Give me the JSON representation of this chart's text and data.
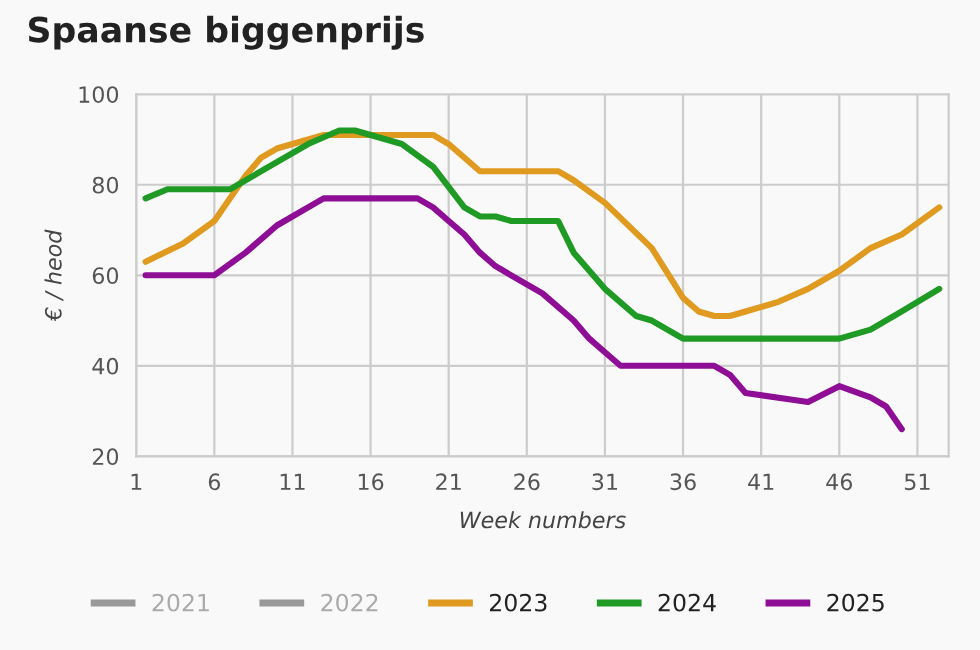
{
  "chart_data": {
    "type": "line",
    "title": "Spaanse biggenprijs",
    "xlabel": "Week numbers",
    "ylabel": "€ / heod",
    "xlim": [
      1,
      53
    ],
    "xticks": [
      1,
      6,
      11,
      16,
      21,
      26,
      31,
      36,
      41,
      46,
      51
    ],
    "ylim": [
      20,
      100
    ],
    "yticks": [
      20,
      40,
      60,
      80,
      100
    ],
    "grid": true,
    "legend": "bottom",
    "line_style": "solid",
    "series": [
      {
        "name": "2021",
        "color": "#999999"
      },
      {
        "name": "2022",
        "color": "#999999"
      },
      {
        "name": "2023",
        "color": "#e09a1f",
        "x": [
          1.6,
          4,
          6,
          8,
          9,
          10,
          11,
          13,
          15,
          20,
          21,
          23,
          28,
          29,
          31,
          34,
          36,
          37,
          38,
          39,
          40,
          42,
          44,
          46,
          48,
          50,
          52.4
        ],
        "values": [
          63,
          67,
          72,
          82,
          86,
          88,
          89,
          91,
          91,
          91,
          89,
          83,
          83,
          81,
          76,
          66,
          55,
          52,
          51,
          51,
          52,
          54,
          57,
          61,
          66,
          69,
          75
        ]
      },
      {
        "name": "2024",
        "color": "#1f9a24",
        "x": [
          1.6,
          3,
          7,
          9,
          11,
          12,
          14,
          15,
          16,
          18,
          20,
          22,
          23,
          24,
          25,
          28,
          29,
          31,
          33,
          34,
          36,
          46,
          48,
          50,
          52.4
        ],
        "values": [
          77,
          79,
          79,
          83,
          87,
          89,
          92,
          92,
          91,
          89,
          84,
          75,
          73,
          73,
          72,
          72,
          65,
          57,
          51,
          50,
          46,
          46,
          48,
          52,
          57
        ]
      },
      {
        "name": "2025",
        "color": "#8e0f96",
        "x": [
          1.6,
          6,
          8,
          10,
          12,
          13,
          19,
          20,
          21,
          22,
          23,
          24,
          25,
          27,
          29,
          30,
          31,
          32,
          38,
          39,
          40,
          43,
          44,
          46,
          48,
          49,
          50
        ],
        "values": [
          60,
          60,
          65,
          71,
          75,
          77,
          77,
          75,
          72,
          69,
          65,
          62,
          60,
          56,
          50,
          46,
          43,
          40,
          40,
          38,
          34,
          32.5,
          32,
          35.5,
          33,
          31,
          26
        ]
      }
    ]
  }
}
